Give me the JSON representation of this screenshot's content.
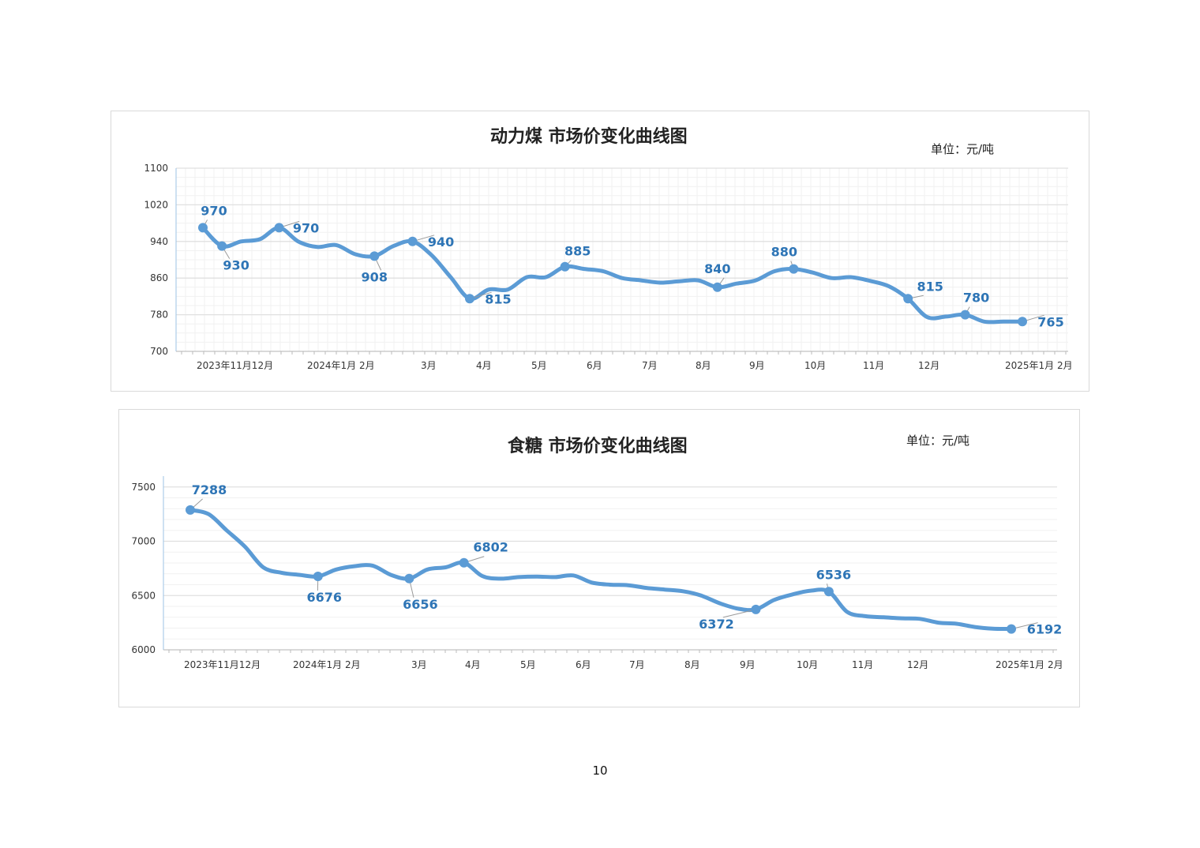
{
  "page_number": "10",
  "colors": {
    "line": "#5b9bd5",
    "label": "#2e75b6",
    "grid": "#e8e8e8"
  },
  "chart_data": [
    {
      "type": "line",
      "title": "动力煤  市场价变化曲线图",
      "unit": "单位：元/吨",
      "ylim": [
        700,
        1100
      ],
      "yticks": [
        700,
        780,
        860,
        940,
        1020,
        1100
      ],
      "grid": true,
      "x_tick_labels": [
        "2023年11月12月",
        "2024年1月 2月",
        "3月",
        "4月",
        "5月",
        "6月",
        "7月",
        "8月",
        "9月",
        "10月",
        "11月",
        "12月",
        "2025年1月 2月"
      ],
      "series": [
        {
          "values": [
            970,
            930,
            940,
            945,
            970,
            940,
            928,
            932,
            912,
            908,
            930,
            940,
            910,
            862,
            815,
            835,
            835,
            862,
            862,
            885,
            880,
            875,
            860,
            855,
            850,
            853,
            855,
            840,
            848,
            855,
            875,
            880,
            872,
            860,
            862,
            854,
            842,
            815,
            775,
            776,
            780,
            765,
            765,
            765
          ]
        }
      ],
      "data_labels": [
        "970",
        "930",
        "970",
        "908",
        "940",
        "815",
        "885",
        "840",
        "880",
        "815",
        "780",
        "765"
      ]
    },
    {
      "type": "line",
      "title": "食糖  市场价变化曲线图",
      "unit": "单位：元/吨",
      "ylim": [
        6000,
        7600
      ],
      "yticks": [
        6000,
        6500,
        7000,
        7500
      ],
      "grid": true,
      "x_tick_labels": [
        "2023年11月12月",
        "2024年1月 2月",
        "3月",
        "4月",
        "5月",
        "6月",
        "7月",
        "8月",
        "9月",
        "10月",
        "11月",
        "12月",
        "2025年1月 2月"
      ],
      "series": [
        {
          "values": [
            7288,
            7250,
            7100,
            6950,
            6760,
            6710,
            6690,
            6676,
            6740,
            6770,
            6775,
            6690,
            6656,
            6740,
            6760,
            6802,
            6680,
            6655,
            6670,
            6675,
            6670,
            6685,
            6620,
            6600,
            6595,
            6570,
            6555,
            6540,
            6500,
            6430,
            6380,
            6372,
            6460,
            6510,
            6545,
            6536,
            6350,
            6310,
            6300,
            6290,
            6285,
            6250,
            6240,
            6210,
            6195,
            6192
          ]
        }
      ],
      "data_labels": [
        "7288",
        "6676",
        "6656",
        "6802",
        "6372",
        "6536",
        "6192"
      ]
    }
  ]
}
